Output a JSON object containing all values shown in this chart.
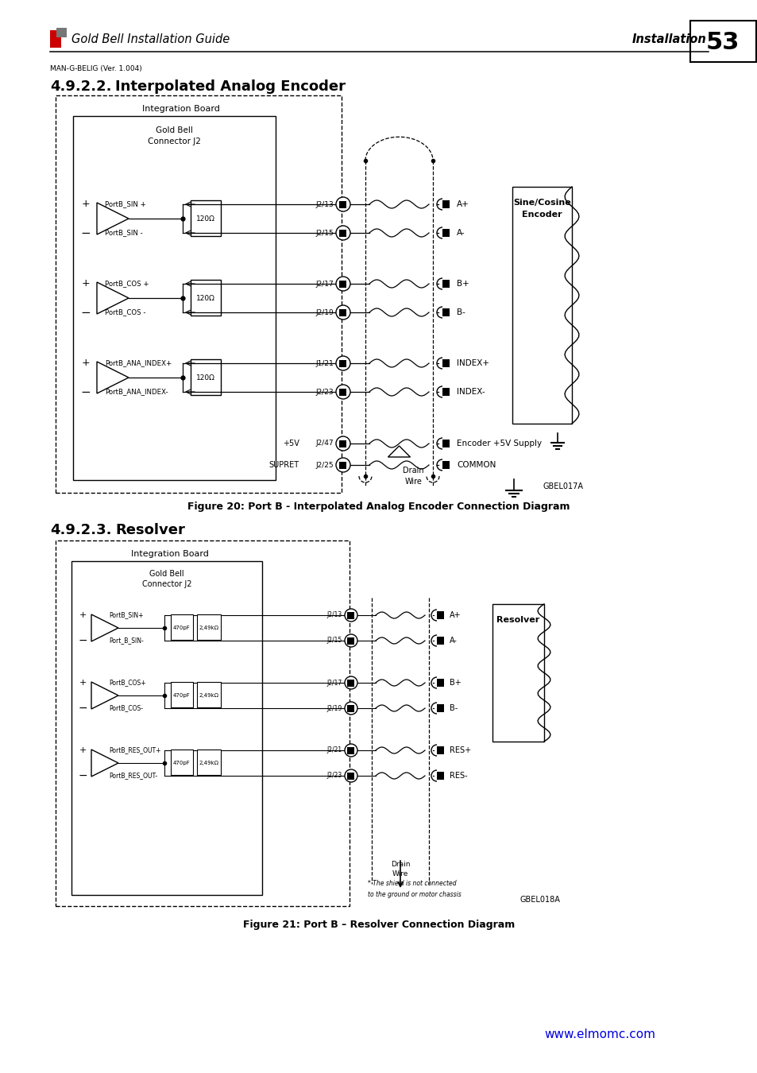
{
  "page_num": "53",
  "title_left": "Gold Bell Installation Guide",
  "title_right": "Installation",
  "subtitle": "MAN-G-BELIG (Ver. 1.004)",
  "sec1_num": "4.9.2.2.",
  "sec1_title": "Interpolated Analog Encoder",
  "sec2_num": "4.9.2.3.",
  "sec2_title": "Resolver",
  "fig1_caption": "Figure 20: Port B - Interpolated Analog Encoder Connection Diagram",
  "fig2_caption": "Figure 21: Port B – Resolver Connection Diagram",
  "website": "www.elmomc.com",
  "logo_red": "#cc0000",
  "logo_gray": "#777777",
  "website_color": "#0000dd",
  "bg": "#ffffff"
}
